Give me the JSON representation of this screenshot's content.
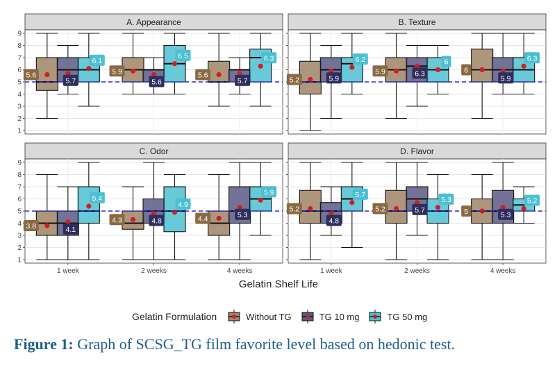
{
  "chart_data": {
    "type": "box",
    "xlabel": "Gelatin Shelf Life",
    "categories": [
      "1 week",
      "2 weeks",
      "4 weeks"
    ],
    "reference_line": 5,
    "ylim": [
      1,
      9
    ],
    "yticks": [
      "1",
      "2",
      "3",
      "4",
      "5",
      "6",
      "7",
      "8",
      "9"
    ],
    "legend": {
      "title": "Gelatin Formulation",
      "entries": [
        {
          "name": "Without TG",
          "color": "#a08466"
        },
        {
          "name": "TG 10 mg",
          "color": "#5a5a86"
        },
        {
          "name": "TG 50 mg",
          "color": "#4dbfd2"
        }
      ],
      "placement": "bottom"
    },
    "panels": [
      {
        "title": "A. Appearance",
        "series": [
          {
            "name": "Without TG",
            "boxes": [
              {
                "min": 2,
                "q1": 4.3,
                "median": 5,
                "q3": 7,
                "max": 9,
                "mean": 5.6,
                "label": "5.6"
              },
              {
                "min": 4,
                "q1": 5,
                "median": 6,
                "q3": 7,
                "max": 9,
                "mean": 5.9,
                "label": "5.9"
              },
              {
                "min": 3,
                "q1": 5,
                "median": 5,
                "q3": 6.7,
                "max": 9,
                "mean": 5.6,
                "label": "5.6"
              }
            ]
          },
          {
            "name": "TG 10 mg",
            "boxes": [
              {
                "min": 4,
                "q1": 5,
                "median": 6,
                "q3": 7,
                "max": 8,
                "mean": 5.7,
                "label": "5.7"
              },
              {
                "min": 4,
                "q1": 5,
                "median": 6,
                "q3": 6,
                "max": 7,
                "mean": 5.6,
                "label": "5.6"
              },
              {
                "min": 4,
                "q1": 5,
                "median": 6,
                "q3": 6,
                "max": 7,
                "mean": 5.7,
                "label": "5.7"
              }
            ]
          },
          {
            "name": "TG 50 mg",
            "boxes": [
              {
                "min": 3,
                "q1": 5,
                "median": 6,
                "q3": 7,
                "max": 9,
                "mean": 6.1,
                "label": "6.1"
              },
              {
                "min": 4,
                "q1": 5,
                "median": 6.5,
                "q3": 8,
                "max": 9,
                "mean": 6.5,
                "label": "6.5"
              },
              {
                "min": 3,
                "q1": 5,
                "median": 7,
                "q3": 7.7,
                "max": 9,
                "mean": 6.3,
                "label": "6.3"
              }
            ]
          }
        ]
      },
      {
        "title": "B. Texture",
        "series": [
          {
            "name": "Without TG",
            "boxes": [
              {
                "min": 1,
                "q1": 4,
                "median": 5,
                "q3": 6.7,
                "max": 9,
                "mean": 5.2,
                "label": "5.2"
              },
              {
                "min": 2,
                "q1": 5,
                "median": 6,
                "q3": 7,
                "max": 9,
                "mean": 5.9,
                "label": "5.9"
              },
              {
                "min": 2,
                "q1": 5,
                "median": 6,
                "q3": 7.7,
                "max": 9,
                "mean": 6,
                "label": "6"
              }
            ]
          },
          {
            "name": "TG 10 mg",
            "boxes": [
              {
                "min": 2,
                "q1": 5,
                "median": 6,
                "q3": 7,
                "max": 8,
                "mean": 5.9,
                "label": "5.9"
              },
              {
                "min": 3,
                "q1": 5,
                "median": 6.3,
                "q3": 7,
                "max": 8,
                "mean": 6.3,
                "label": "6.3"
              },
              {
                "min": 4,
                "q1": 5,
                "median": 6,
                "q3": 7,
                "max": 9,
                "mean": 5.9,
                "label": "5.9"
              }
            ]
          },
          {
            "name": "TG 50 mg",
            "boxes": [
              {
                "min": 4,
                "q1": 5,
                "median": 6.5,
                "q3": 7,
                "max": 9,
                "mean": 6.2,
                "label": "6.2"
              },
              {
                "min": 4,
                "q1": 5,
                "median": 6,
                "q3": 7,
                "max": 8,
                "mean": 6,
                "label": "6"
              },
              {
                "min": 4,
                "q1": 5,
                "median": 6,
                "q3": 7,
                "max": 9,
                "mean": 6.3,
                "label": "6.3"
              }
            ]
          }
        ]
      },
      {
        "title": "C. Odor",
        "series": [
          {
            "name": "Without TG",
            "boxes": [
              {
                "min": 1,
                "q1": 3,
                "median": 4,
                "q3": 5,
                "max": 8,
                "mean": 3.8,
                "label": "3.8"
              },
              {
                "min": 1,
                "q1": 3.5,
                "median": 4,
                "q3": 5,
                "max": 7,
                "mean": 4.3,
                "label": "4.3"
              },
              {
                "min": 1,
                "q1": 3,
                "median": 4,
                "q3": 5,
                "max": 8,
                "mean": 4.4,
                "label": "4.4"
              }
            ]
          },
          {
            "name": "TG 10 mg",
            "boxes": [
              {
                "min": 1,
                "q1": 3,
                "median": 4,
                "q3": 5,
                "max": 7,
                "mean": 4.1,
                "label": "4.1"
              },
              {
                "min": 1,
                "q1": 4,
                "median": 5,
                "q3": 6,
                "max": 9,
                "mean": 4.8,
                "label": "4.8"
              },
              {
                "min": 1,
                "q1": 4,
                "median": 5,
                "q3": 7,
                "max": 9,
                "mean": 5.3,
                "label": "5.3"
              }
            ]
          },
          {
            "name": "TG 50 mg",
            "boxes": [
              {
                "min": 1,
                "q1": 4,
                "median": 5,
                "q3": 7,
                "max": 9,
                "mean": 5.4,
                "label": "5.4"
              },
              {
                "min": 1,
                "q1": 3.3,
                "median": 5,
                "q3": 7,
                "max": 8,
                "mean": 4.9,
                "label": "4.9"
              },
              {
                "min": 3,
                "q1": 5,
                "median": 6,
                "q3": 7,
                "max": 9,
                "mean": 5.9,
                "label": "5.9"
              }
            ]
          }
        ]
      },
      {
        "title": "D. Flavor",
        "series": [
          {
            "name": "Without TG",
            "boxes": [
              {
                "min": 1,
                "q1": 4,
                "median": 5,
                "q3": 6.7,
                "max": 9,
                "mean": 5.2,
                "label": "5.2"
              },
              {
                "min": 1,
                "q1": 4,
                "median": 5,
                "q3": 6.7,
                "max": 9,
                "mean": 5.2,
                "label": "5.2"
              },
              {
                "min": 1,
                "q1": 4,
                "median": 5,
                "q3": 6,
                "max": 8,
                "mean": 5,
                "label": "5"
              }
            ]
          },
          {
            "name": "TG 10 mg",
            "boxes": [
              {
                "min": 3,
                "q1": 4,
                "median": 5,
                "q3": 5.7,
                "max": 7,
                "mean": 4.8,
                "label": "4.8"
              },
              {
                "min": 3,
                "q1": 5,
                "median": 6,
                "q3": 7,
                "max": 9,
                "mean": 5.7,
                "label": "5.7"
              },
              {
                "min": 1,
                "q1": 4,
                "median": 5,
                "q3": 6.7,
                "max": 9,
                "mean": 5.3,
                "label": "5.3"
              }
            ]
          },
          {
            "name": "TG 50 mg",
            "boxes": [
              {
                "min": 2,
                "q1": 5,
                "median": 6,
                "q3": 7,
                "max": 9,
                "mean": 5.7,
                "label": "5.7"
              },
              {
                "min": 1,
                "q1": 4,
                "median": 5,
                "q3": 6,
                "max": 8,
                "mean": 5.3,
                "label": "5.3"
              },
              {
                "min": 4,
                "q1": 5,
                "median": 5.5,
                "q3": 6,
                "max": 7,
                "mean": 5.2,
                "label": "5.2"
              }
            ]
          }
        ]
      }
    ]
  },
  "caption": {
    "label": "Figure 1:",
    "text": " Graph of SCSG_TG film favorite level based on hedonic test."
  }
}
